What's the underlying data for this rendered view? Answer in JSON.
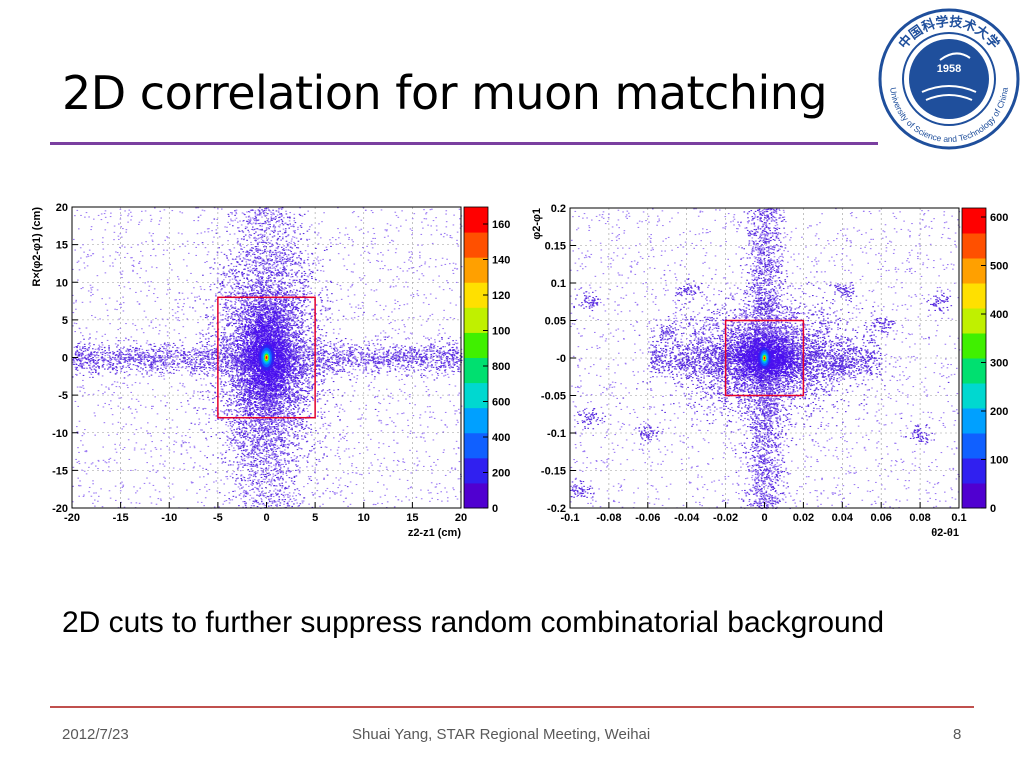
{
  "slide": {
    "title": "2D correlation for muon matching",
    "caption": "2D cuts to further suppress random combinatorial background",
    "footer_date": "2012/7/23",
    "footer_center": "Shuai Yang, STAR Regional Meeting, Weihai",
    "page_number": "8"
  },
  "logo": {
    "year": "1958",
    "ring_text": "University of Science and Technology of China",
    "chinese_text": "中国科学技术大学",
    "color": "#1f4f9c"
  },
  "colors": {
    "title_rule": "#7a3fa0",
    "footer_rule": "#c0504d",
    "cut_box": "#e4002b",
    "hist_main": "#5a2de0",
    "hist_light": "#9d7cf4"
  },
  "chart_data": [
    {
      "type": "heatmap",
      "xlabel": "z2-z1 (cm)",
      "ylabel": "R×(φ2-φ1) (cm)",
      "xlim": [
        -20,
        20
      ],
      "ylim": [
        -20,
        20
      ],
      "x_ticks": [
        "-20",
        "-15",
        "-10",
        "-5",
        "0",
        "5",
        "10",
        "15",
        "20"
      ],
      "y_ticks": [
        "20",
        "15",
        "10",
        "5",
        "0",
        "-5",
        "-10",
        "-15",
        "-20"
      ],
      "colorbar_labels": [
        "160",
        "140",
        "120",
        "100",
        "800",
        "600",
        "400",
        "200",
        "0"
      ],
      "grid": true,
      "cut_box": {
        "x": [
          -5,
          5
        ],
        "y": [
          -8,
          8
        ]
      },
      "peak": [
        0,
        0
      ]
    },
    {
      "type": "heatmap",
      "xlabel": "θ2-θ1",
      "ylabel": "φ2-φ1",
      "xlim": [
        -0.1,
        0.1
      ],
      "ylim": [
        -0.2,
        0.2
      ],
      "x_ticks": [
        "-0.1",
        "-0.08",
        "-0.06",
        "-0.04",
        "-0.02",
        "0",
        "0.02",
        "0.04",
        "0.06",
        "0.08",
        "0.1"
      ],
      "y_ticks": [
        "0.2",
        "0.15",
        "0.1",
        "0.05",
        "-0",
        "-0.05",
        "-0.1",
        "-0.15",
        "-0.2"
      ],
      "colorbar_labels": [
        "600",
        "500",
        "400",
        "300",
        "200",
        "100",
        "0"
      ],
      "grid": true,
      "cut_box": {
        "x": [
          -0.02,
          0.02
        ],
        "y": [
          -0.05,
          0.05
        ]
      },
      "peak": [
        0,
        0
      ]
    }
  ]
}
